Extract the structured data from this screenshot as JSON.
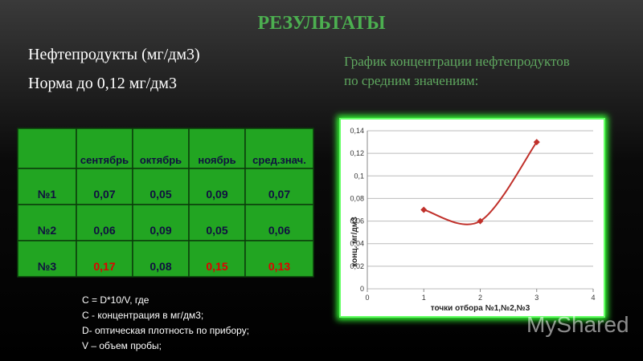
{
  "title": "РЕЗУЛЬТАТЫ",
  "left_lines": [
    "Нефтепродукты (мг/дм3)",
    "Норма до 0,12 мг/дм3"
  ],
  "chart_caption": [
    "График концентрации  нефтепродуктов",
    " по средним значениям:"
  ],
  "table": {
    "header": [
      "сентябрь",
      "октябрь",
      "ноябрь",
      "сред.знач."
    ],
    "rows": [
      [
        {
          "text": "№1",
          "color": "#101040"
        },
        {
          "text": "0,07",
          "color": "#101040"
        },
        {
          "text": "0,05",
          "color": "#101040"
        },
        {
          "text": "0,09",
          "color": "#101040"
        },
        {
          "text": "0,07",
          "color": "#101040"
        }
      ],
      [
        {
          "text": "№2",
          "color": "#101040"
        },
        {
          "text": "0,06",
          "color": "#101040"
        },
        {
          "text": "0,09",
          "color": "#101040"
        },
        {
          "text": "0,05",
          "color": "#101040"
        },
        {
          "text": "0,06",
          "color": "#101040"
        }
      ],
      [
        {
          "text": "№3",
          "color": "#101040"
        },
        {
          "text": "0,17",
          "color": "#e00000"
        },
        {
          "text": "0,08",
          "color": "#101040"
        },
        {
          "text": "0,15",
          "color": "#e00000"
        },
        {
          "text": "0,13",
          "color": "#e00000"
        }
      ]
    ]
  },
  "formula": [
    "C = D*10/V, где",
    "C - концентрация в мг/дм3;",
    "D- оптическая плотность по прибору;",
    "V – объем пробы;"
  ],
  "watermark": "MyShared",
  "chart_data": {
    "type": "line",
    "x_label": "точки отбора №1,№2,№3",
    "y_label": "конц. мг/дм3",
    "x": [
      1,
      2,
      3
    ],
    "series": [
      {
        "name": "сред.знач.",
        "color": "#c0302a",
        "values": [
          0.07,
          0.06,
          0.13
        ]
      }
    ],
    "xlim": [
      0,
      4
    ],
    "xticks": [
      0,
      1,
      2,
      3,
      4
    ],
    "ylim": [
      0,
      0.14
    ],
    "yticks": [
      0,
      {
        "value": 0.02,
        "label": "0,02"
      },
      {
        "value": 0.04,
        "label": "0,04"
      },
      {
        "value": 0.06,
        "label": "0,06"
      },
      {
        "value": 0.08,
        "label": "0,08"
      },
      {
        "value": 0.1,
        "label": "0,1"
      },
      {
        "value": 0.12,
        "label": "0,12"
      },
      {
        "value": 0.14,
        "label": "0,14"
      }
    ],
    "grid": true,
    "smooth": true
  }
}
